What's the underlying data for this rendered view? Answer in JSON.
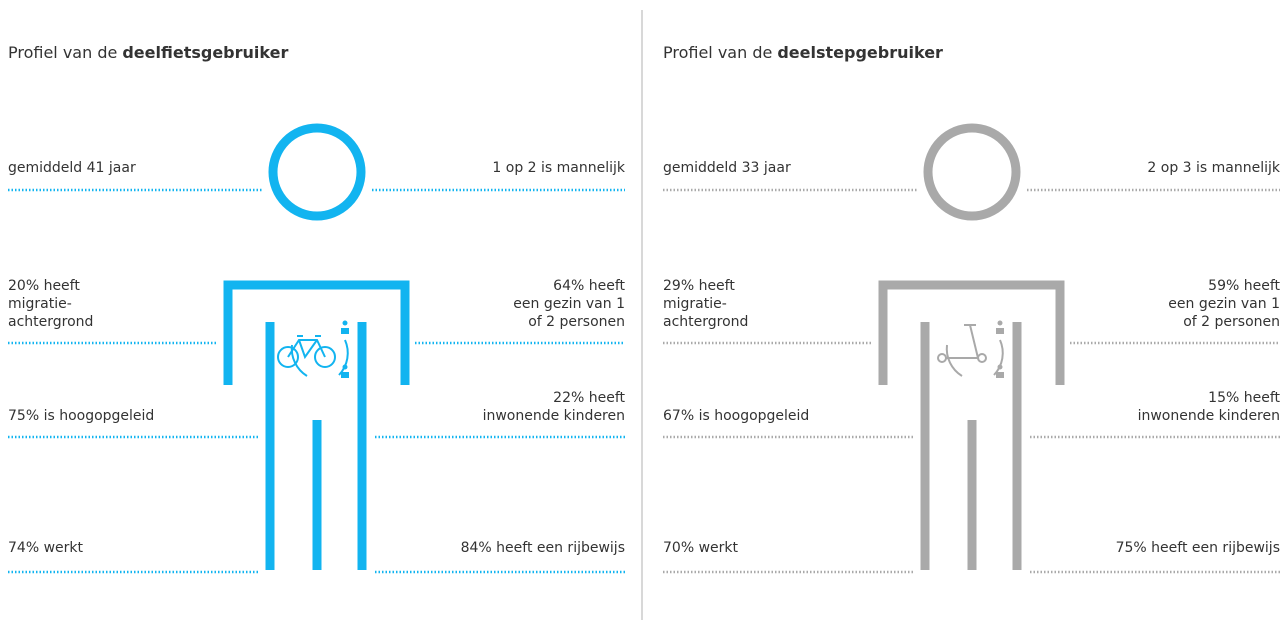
{
  "panels": [
    {
      "title": {
        "prefix": "Profiel van de",
        "bold": "deelfietsgebruiker"
      },
      "color": "#12b4f0",
      "left": [
        {
          "lines": [
            "gemiddeld 41 jaar"
          ]
        },
        {
          "lines": [
            "20% heeft",
            "migratie-",
            "achtergrond"
          ]
        },
        {
          "lines": [
            "75% is hoogopgeleid"
          ]
        },
        {
          "lines": [
            "74% werkt"
          ]
        }
      ],
      "right": [
        {
          "lines": [
            "1 op 2 is mannelijk"
          ]
        },
        {
          "lines": [
            "64% heeft",
            "een gezin van 1",
            "of 2 personen"
          ]
        },
        {
          "lines": [
            "22% heeft",
            "inwonende kinderen"
          ]
        },
        {
          "lines": [
            "84% heeft een rijbewijs"
          ]
        }
      ]
    },
    {
      "title": {
        "prefix": "Profiel van de",
        "bold": "deelstepgebruiker"
      },
      "color": "#a9a9a9",
      "left": [
        {
          "lines": [
            "gemiddeld 33 jaar"
          ]
        },
        {
          "lines": [
            "29% heeft",
            "migratie-",
            "achtergrond"
          ]
        },
        {
          "lines": [
            "67% is hoogopgeleid"
          ]
        },
        {
          "lines": [
            "70% werkt"
          ]
        }
      ],
      "right": [
        {
          "lines": [
            "2 op 3 is mannelijk"
          ]
        },
        {
          "lines": [
            "59% heeft",
            "een gezin van 1",
            "of 2 personen"
          ]
        },
        {
          "lines": [
            "15% heeft",
            "inwonende kinderen"
          ]
        },
        {
          "lines": [
            "75% heeft een rijbewijs"
          ]
        }
      ]
    }
  ]
}
